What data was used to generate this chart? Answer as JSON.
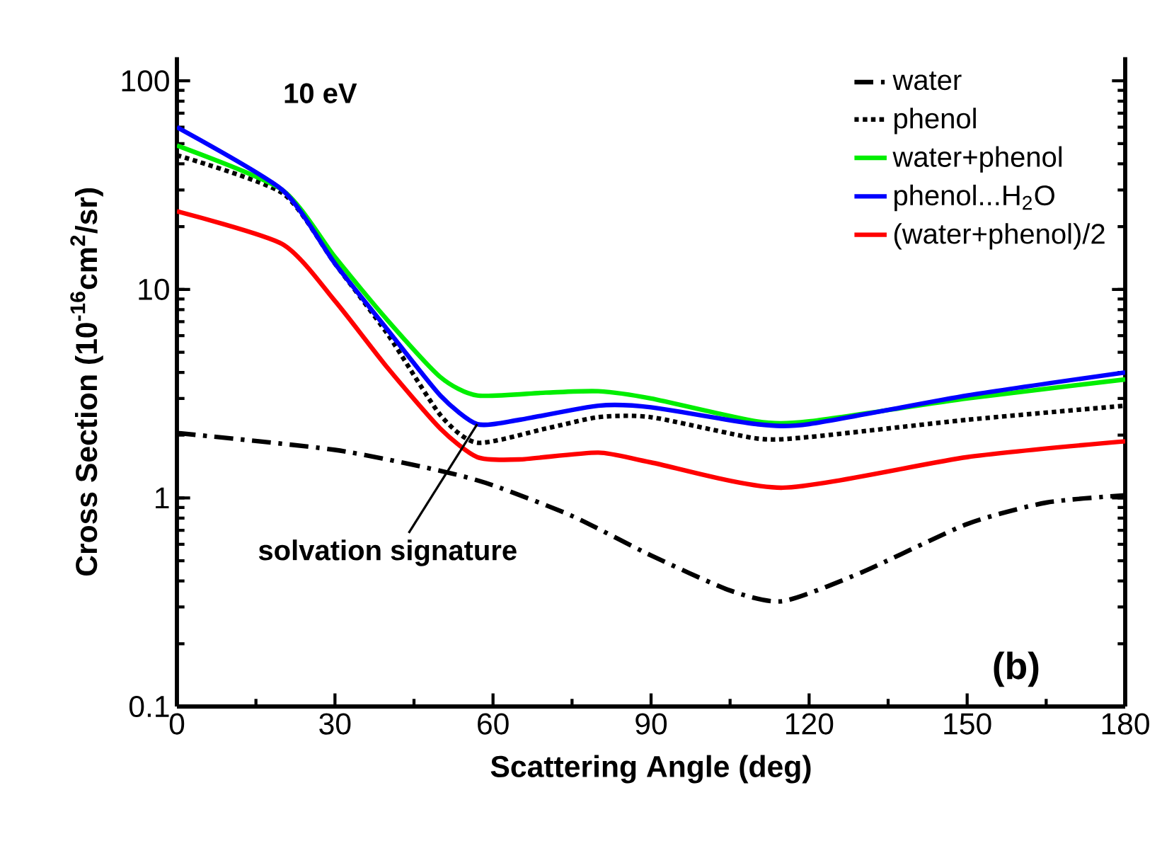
{
  "chart_data": {
    "type": "line",
    "xlabel": "Scattering Angle (deg)",
    "ylabel": "Cross Section (10$^{-16}$cm$^{2}$/sr)",
    "log": "y",
    "xlim": [
      0,
      180
    ],
    "xticks": [
      0,
      30,
      60,
      90,
      120,
      150,
      180
    ],
    "ylim": [
      0.1,
      130
    ],
    "yticks": [
      0.1,
      1,
      10,
      100
    ],
    "grid": false,
    "legend": "top right",
    "marker": "none",
    "series": [
      {
        "name": "water",
        "color": "#000000",
        "line_style": "dashdot",
        "x": [
          0,
          30,
          50,
          60,
          75,
          90,
          105,
          115,
          130,
          150,
          165,
          180
        ],
        "values": [
          2.05,
          1.7,
          1.35,
          1.15,
          0.82,
          0.53,
          0.36,
          0.32,
          0.44,
          0.75,
          0.95,
          1.03
        ]
      },
      {
        "name": "phenol",
        "color": "#000000",
        "line_style": "dotted",
        "x": [
          0,
          20,
          30,
          40,
          50,
          57,
          70,
          80,
          90,
          110,
          120,
          150,
          180
        ],
        "values": [
          44,
          29,
          13.3,
          6.1,
          2.5,
          1.84,
          2.15,
          2.44,
          2.44,
          1.93,
          1.96,
          2.37,
          2.77
        ]
      },
      {
        "name": "water+phenol",
        "color": "#00ee00",
        "line_style": "solid",
        "x": [
          0,
          20,
          30,
          40,
          50,
          57,
          70,
          80,
          90,
          110,
          120,
          150,
          180
        ],
        "values": [
          49,
          30,
          14.3,
          7.1,
          3.8,
          3.1,
          3.2,
          3.25,
          3.0,
          2.33,
          2.33,
          3.0,
          3.7
        ]
      },
      {
        "name": "phenol...H$_{2}$O",
        "color": "#0000ff",
        "line_style": "solid",
        "x": [
          0,
          20,
          30,
          40,
          50,
          57,
          65,
          80,
          90,
          110,
          120,
          150,
          180
        ],
        "values": [
          60,
          30,
          13.3,
          6.4,
          3.1,
          2.26,
          2.37,
          2.77,
          2.72,
          2.26,
          2.26,
          3.1,
          4.0
        ]
      },
      {
        "name": "(water+phenol)/2",
        "color": "#ff0000",
        "line_style": "solid",
        "x": [
          0,
          20,
          30,
          40,
          50,
          57,
          65,
          80,
          90,
          115,
          150,
          180
        ],
        "values": [
          23.7,
          16.5,
          8.8,
          4.2,
          2.15,
          1.57,
          1.53,
          1.65,
          1.48,
          1.12,
          1.57,
          1.87
        ]
      }
    ],
    "annotations": [
      "10 eV",
      {
        "text": "solvation signature",
        "x": 57,
        "y": 2.26
      },
      "(b)"
    ]
  }
}
